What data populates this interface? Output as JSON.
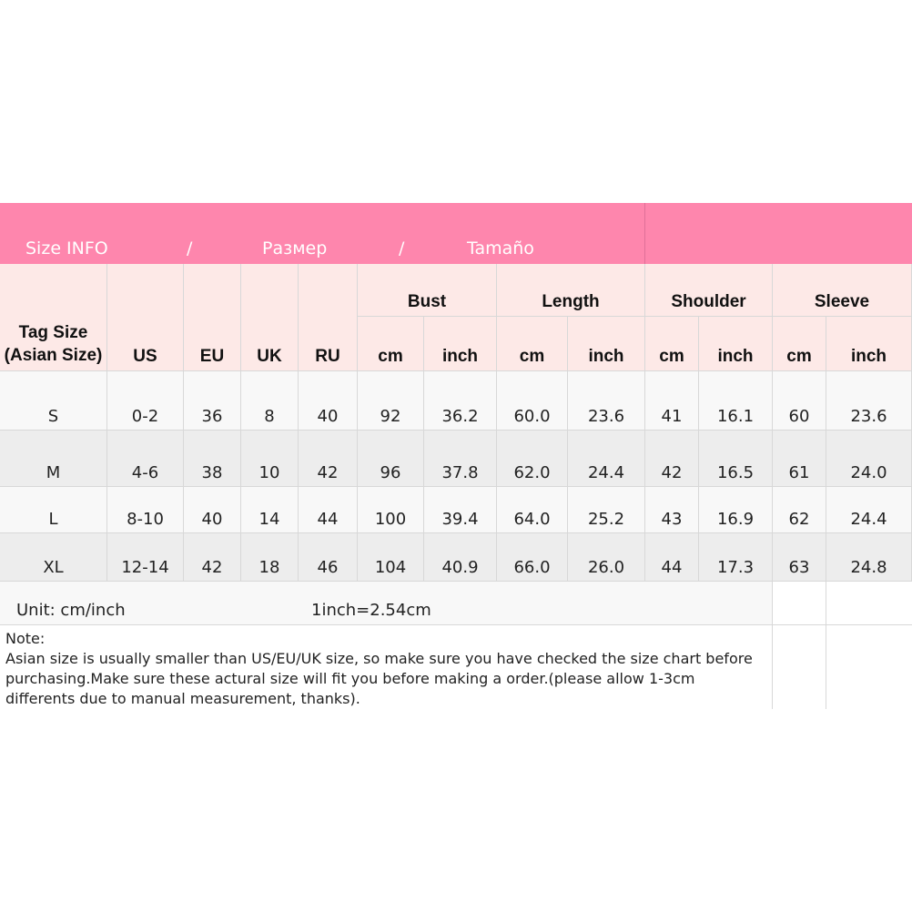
{
  "title": {
    "parts": [
      "Size INFO",
      "/",
      "Размер",
      "/",
      "Tamaño"
    ]
  },
  "colors": {
    "header": "#fe86ad",
    "subheader": "#fde9e7",
    "row_light": "#f8f8f8",
    "row_dark": "#ededed"
  },
  "headers": {
    "tag": "Tag Size\n(Asian Size)",
    "us": "US",
    "eu": "EU",
    "uk": "UK",
    "ru": "RU",
    "bust": "Bust",
    "length": "Length",
    "shoulder": "Shoulder",
    "sleeve": "Sleeve",
    "cm": "cm",
    "inch": "inch"
  },
  "rows": [
    [
      "S",
      "0-2",
      "36",
      "8",
      "40",
      "92",
      "36.2",
      "60.0",
      "23.6",
      "41",
      "16.1",
      "60",
      "23.6"
    ],
    [
      "M",
      "4-6",
      "38",
      "10",
      "42",
      "96",
      "37.8",
      "62.0",
      "24.4",
      "42",
      "16.5",
      "61",
      "24.0"
    ],
    [
      "L",
      "8-10",
      "40",
      "14",
      "44",
      "100",
      "39.4",
      "64.0",
      "25.2",
      "43",
      "16.9",
      "62",
      "24.4"
    ],
    [
      "XL",
      "12-14",
      "42",
      "18",
      "46",
      "104",
      "40.9",
      "66.0",
      "26.0",
      "44",
      "17.3",
      "63",
      "24.8"
    ]
  ],
  "footer": {
    "unit": "Unit: cm/inch",
    "conversion": "1inch=2.54cm",
    "note_label": "Note:",
    "note": "Asian size is usually smaller than US/EU/UK size, so make sure you have checked the size chart before purchasing.Make sure these actural size will fit you before making a order.(please allow 1-3cm differents due to manual measurement, thanks)."
  }
}
